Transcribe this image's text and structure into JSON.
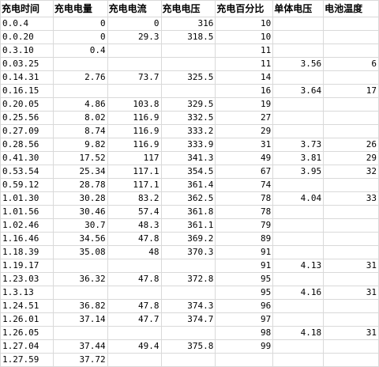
{
  "sheet": {
    "headers": [
      "充电时间",
      "充电电量",
      "充电电流",
      "充电电压",
      "充电百分比",
      "单体电压",
      "电池温度"
    ],
    "rows": [
      [
        "0.0.4",
        "0",
        "0",
        "316",
        "10",
        "",
        ""
      ],
      [
        "0.0.20",
        "0",
        "29.3",
        "318.5",
        "10",
        "",
        ""
      ],
      [
        "0.3.10",
        "0.4",
        "",
        "",
        "11",
        "",
        ""
      ],
      [
        "0.03.25",
        "",
        "",
        "",
        "11",
        "3.56",
        "6"
      ],
      [
        "0.14.31",
        "2.76",
        "73.7",
        "325.5",
        "14",
        "",
        ""
      ],
      [
        "0.16.15",
        "",
        "",
        "",
        "16",
        "3.64",
        "17"
      ],
      [
        "0.20.05",
        "4.86",
        "103.8",
        "329.5",
        "19",
        "",
        ""
      ],
      [
        "0.25.56",
        "8.02",
        "116.9",
        "332.5",
        "27",
        "",
        ""
      ],
      [
        "0.27.09",
        "8.74",
        "116.9",
        "333.2",
        "29",
        "",
        ""
      ],
      [
        "0.28.56",
        "9.82",
        "116.9",
        "333.9",
        "31",
        "3.73",
        "26"
      ],
      [
        "0.41.30",
        "17.52",
        "117",
        "341.3",
        "49",
        "3.81",
        "29"
      ],
      [
        "0.53.54",
        "25.34",
        "117.1",
        "354.5",
        "67",
        "3.95",
        "32"
      ],
      [
        "0.59.12",
        "28.78",
        "117.1",
        "361.4",
        "74",
        "",
        ""
      ],
      [
        "1.01.30",
        "30.28",
        "83.2",
        "362.5",
        "78",
        "4.04",
        "33"
      ],
      [
        "1.01.56",
        "30.46",
        "57.4",
        "361.8",
        "78",
        "",
        ""
      ],
      [
        "1.02.46",
        "30.7",
        "48.3",
        "361.1",
        "79",
        "",
        ""
      ],
      [
        "1.16.46",
        "34.56",
        "47.8",
        "369.2",
        "89",
        "",
        ""
      ],
      [
        "1.18.39",
        "35.08",
        "48",
        "370.3",
        "91",
        "",
        ""
      ],
      [
        "1.19.17",
        "",
        "",
        "",
        "91",
        "4.13",
        "31"
      ],
      [
        "1.23.03",
        "36.32",
        "47.8",
        "372.8",
        "95",
        "",
        ""
      ],
      [
        "1.3.13",
        "",
        "",
        "",
        "95",
        "4.16",
        "31"
      ],
      [
        "1.24.51",
        "36.82",
        "47.8",
        "374.3",
        "96",
        "",
        ""
      ],
      [
        "1.26.01",
        "37.14",
        "47.7",
        "374.7",
        "97",
        "",
        ""
      ],
      [
        "1.26.05",
        "",
        "",
        "",
        "98",
        "4.18",
        "31"
      ],
      [
        "1.27.04",
        "37.44",
        "49.4",
        "375.8",
        "99",
        "",
        ""
      ],
      [
        "1.27.59",
        "37.72",
        "",
        "",
        "",
        "",
        ""
      ]
    ]
  }
}
